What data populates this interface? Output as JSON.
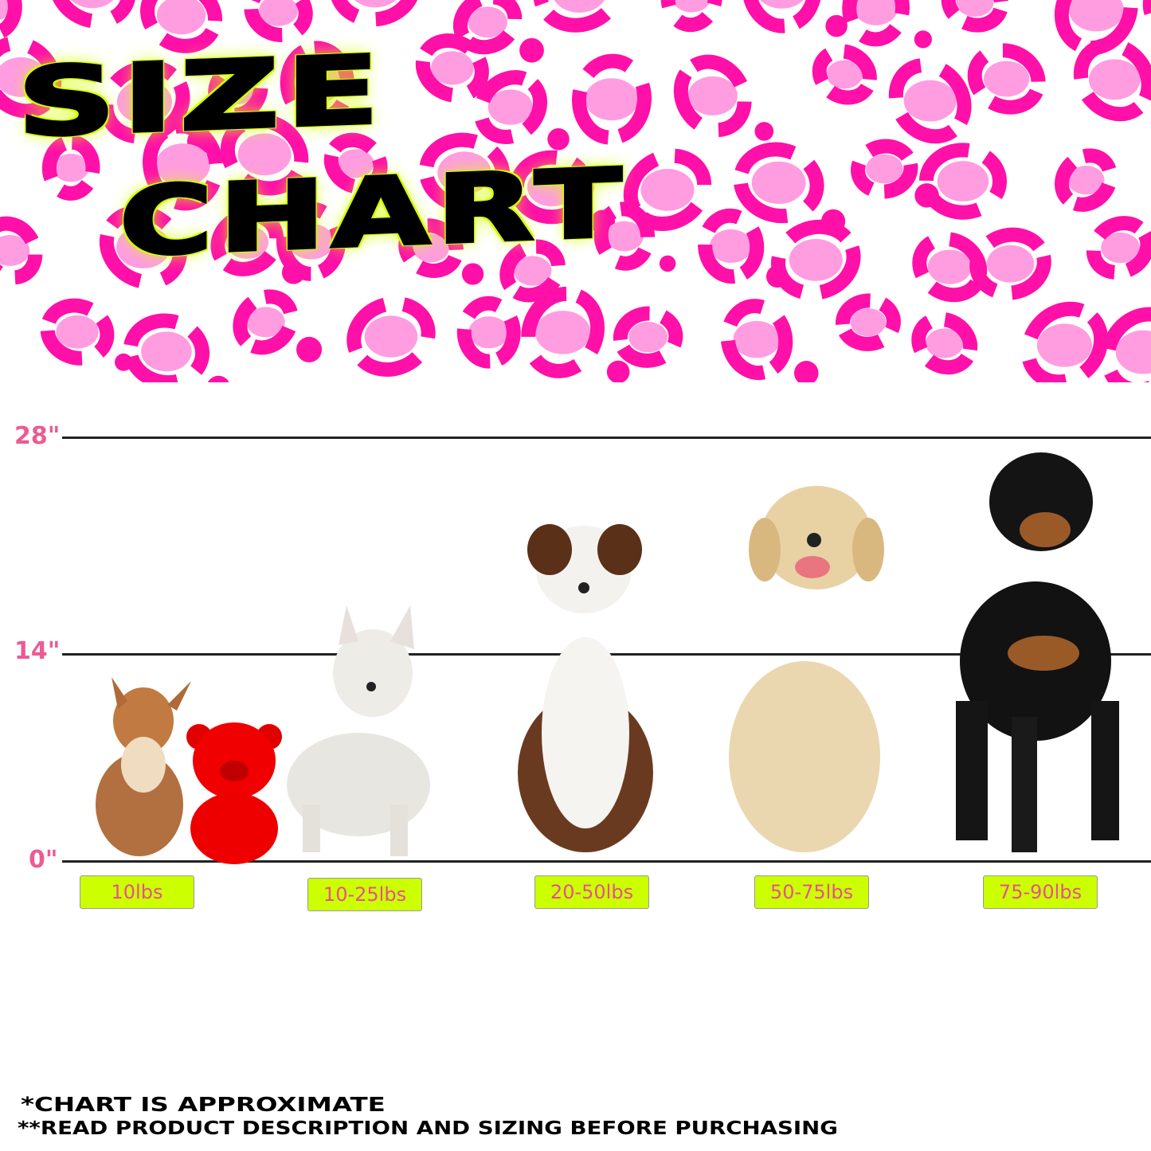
{
  "title": {
    "line1": "SIZE",
    "line2": "CHART"
  },
  "colors": {
    "spot_dark": "#ff10a8",
    "spot_light": "#ff9de0",
    "label_bg": "#ccff00",
    "label_text": "#e8508f",
    "title_glow": "#d4ff00"
  },
  "height_scale": [
    {
      "label": "28\"",
      "value": 28
    },
    {
      "label": "14\"",
      "value": 14
    },
    {
      "label": "0\"",
      "value": 0
    }
  ],
  "weight_labels": [
    "10lbs",
    "10-25lbs",
    "20-50lbs",
    "50-75lbs",
    "75-90lbs"
  ],
  "subjects": [
    "chihuahua",
    "red-bear-toy",
    "west-highland-terrier",
    "australian-shepherd",
    "golden-retriever",
    "rottweiler"
  ],
  "notes": [
    "*CHART IS APPROXIMATE",
    "**READ PRODUCT DESCRIPTION AND SIZING BEFORE PURCHASING"
  ]
}
